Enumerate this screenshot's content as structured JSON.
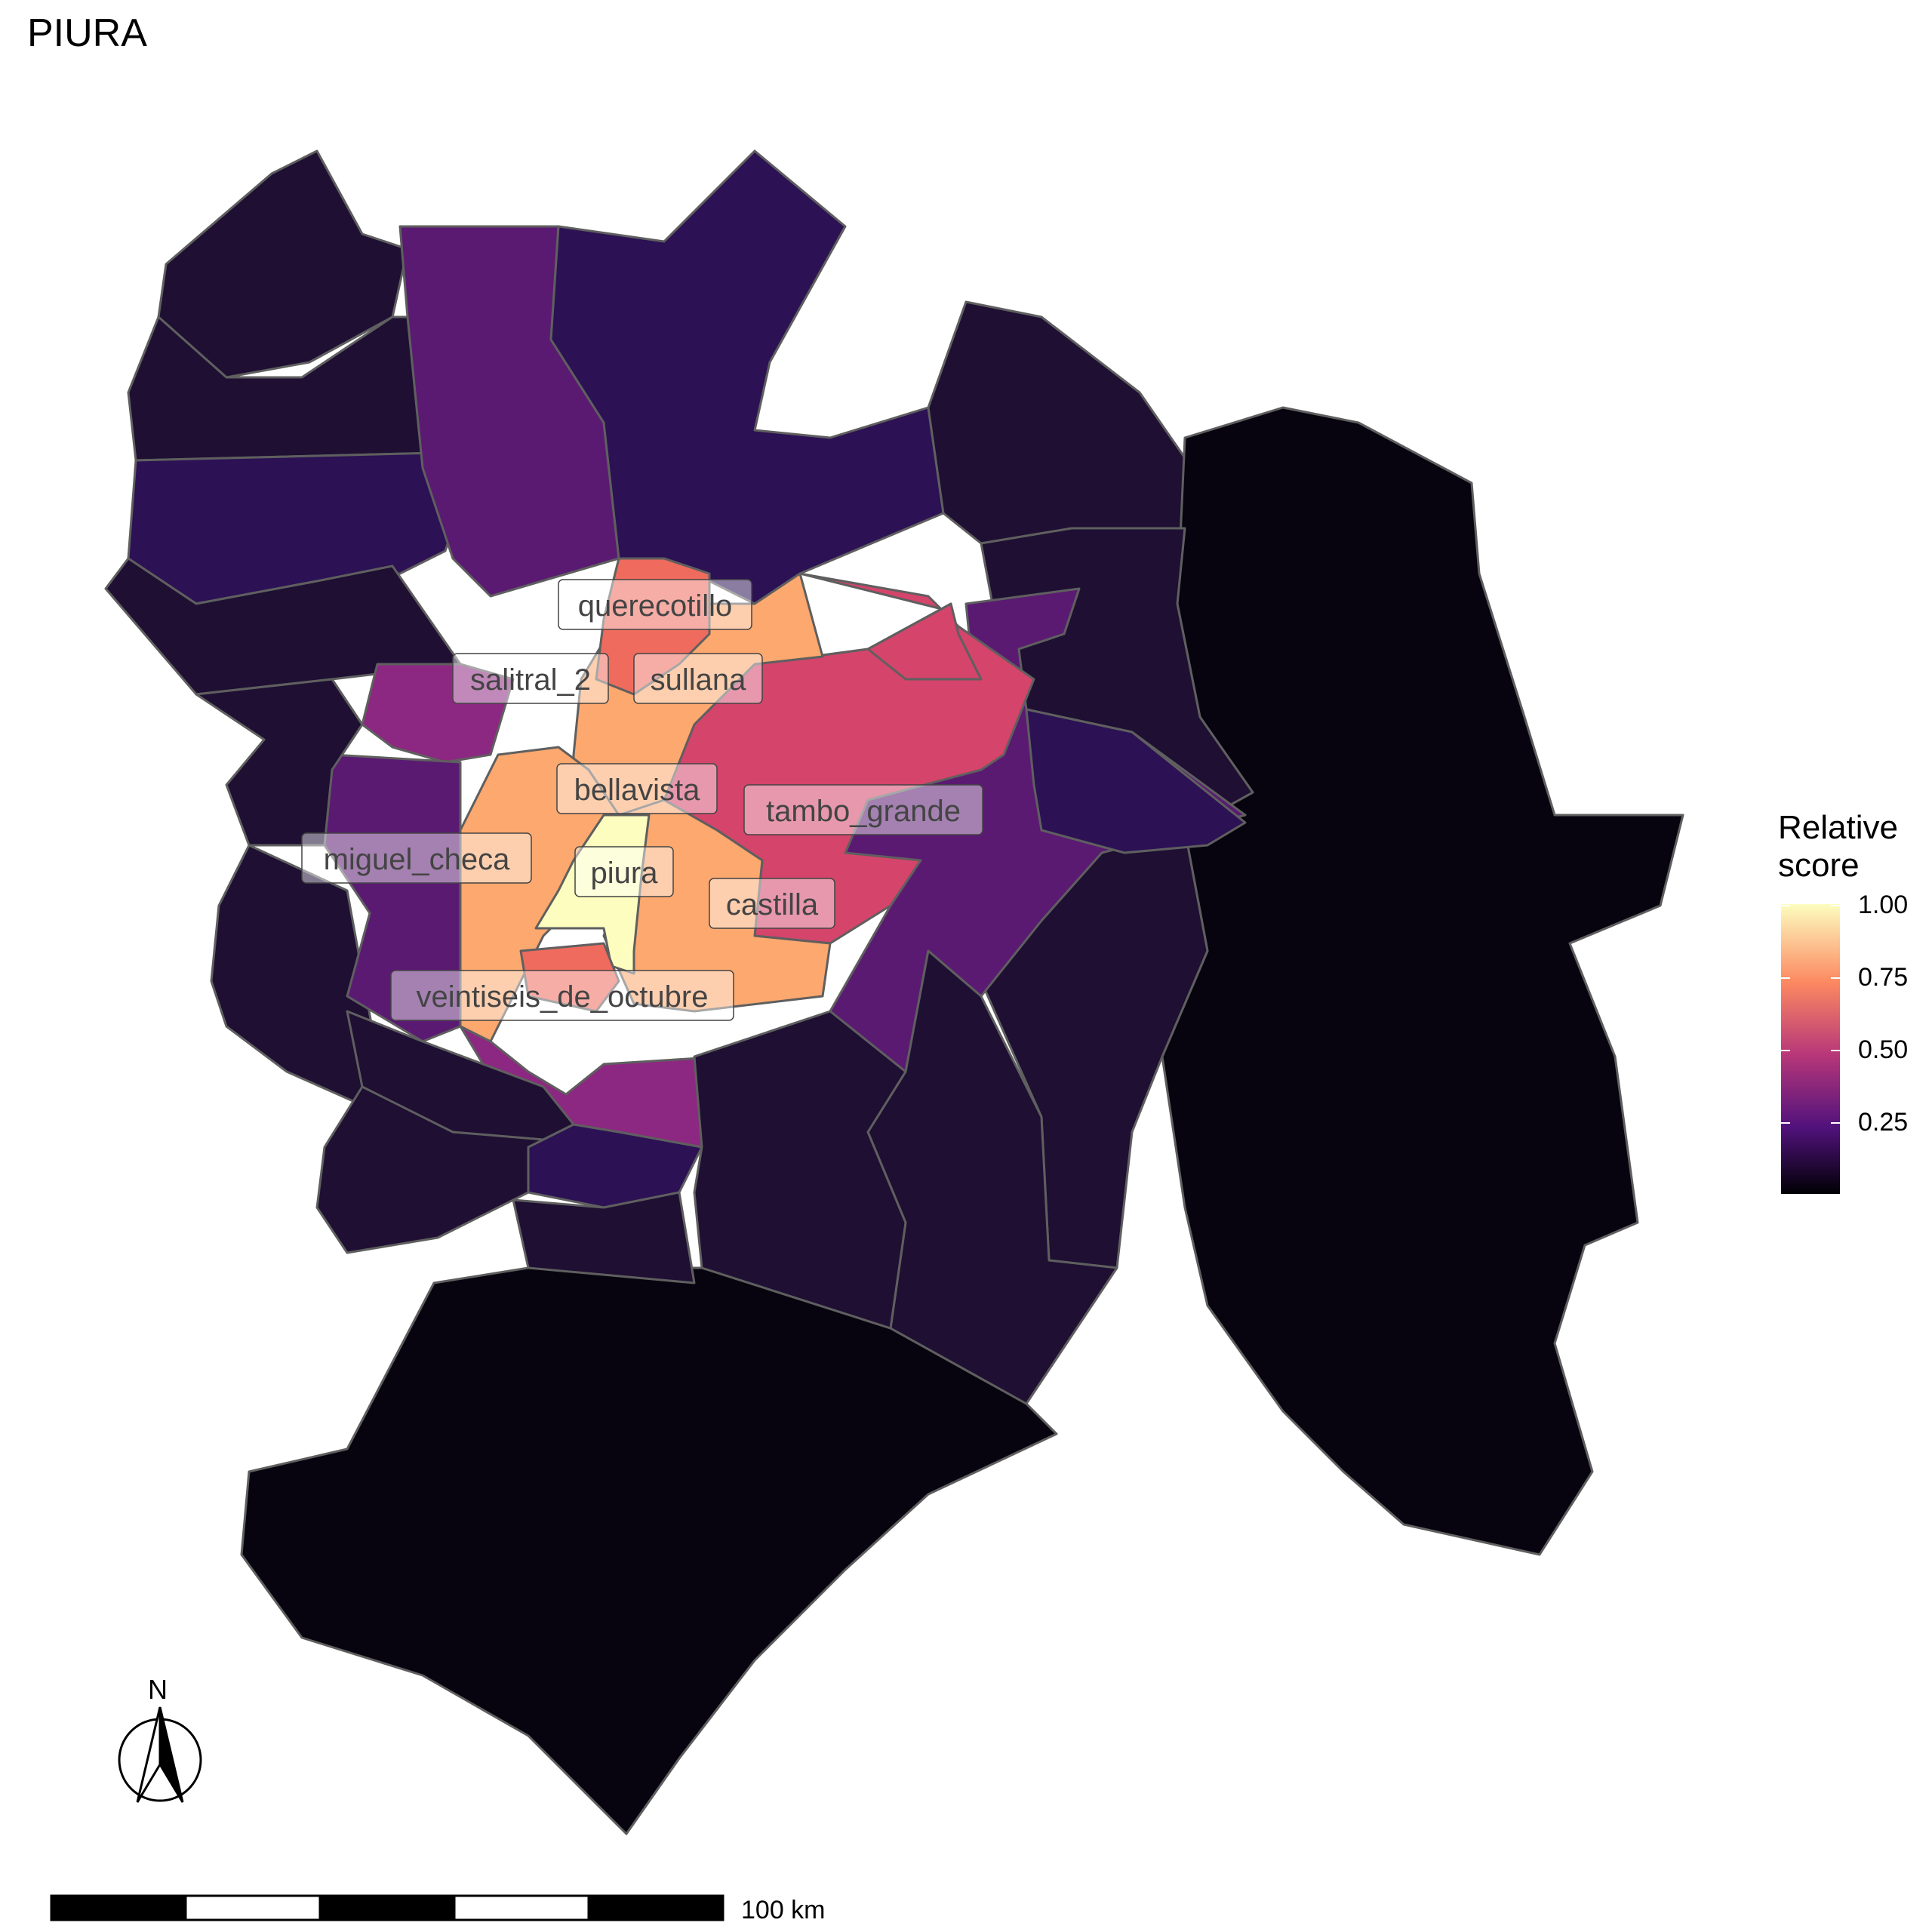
{
  "title": "PIURA",
  "legend": {
    "title_line1": "Relative",
    "title_line2": "score",
    "ticks": [
      "1.00",
      "0.75",
      "0.50",
      "0.25"
    ],
    "colors": [
      "#fcfdbf",
      "#fc8961",
      "#b73779",
      "#51127c",
      "#000004"
    ]
  },
  "labels": {
    "querecotillo": "querecotillo",
    "salitral_2": "salitral_2",
    "sullana": "sullana",
    "bellavista": "bellavista",
    "tambo_grande": "tambo_grande",
    "miguel_checa": "miguel_checa",
    "piura": "piura",
    "castilla": "castilla",
    "veintiseis_de_octubre": "veintiseis_de_octubre"
  },
  "scale_bar": {
    "label": "100 km"
  },
  "north_arrow": {
    "letter": "N"
  },
  "colors": {
    "highest": "#fcfdbf",
    "high": "#fca86e",
    "mid_high": "#ee6b5e",
    "mid": "#d4446b",
    "low_mid": "#8c2881",
    "low": "#5a1a72",
    "lower": "#2c1154",
    "very_low": "#1e0f33",
    "lowest": "#07040f"
  }
}
